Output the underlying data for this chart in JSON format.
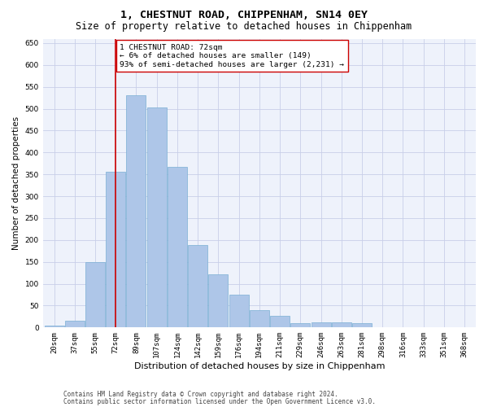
{
  "title": "1, CHESTNUT ROAD, CHIPPENHAM, SN14 0EY",
  "subtitle": "Size of property relative to detached houses in Chippenham",
  "xlabel": "Distribution of detached houses by size in Chippenham",
  "ylabel": "Number of detached properties",
  "categories": [
    "20sqm",
    "37sqm",
    "55sqm",
    "72sqm",
    "89sqm",
    "107sqm",
    "124sqm",
    "142sqm",
    "159sqm",
    "176sqm",
    "194sqm",
    "211sqm",
    "229sqm",
    "246sqm",
    "263sqm",
    "281sqm",
    "298sqm",
    "316sqm",
    "333sqm",
    "351sqm",
    "368sqm"
  ],
  "values": [
    5,
    15,
    150,
    355,
    530,
    502,
    367,
    188,
    122,
    75,
    40,
    27,
    10,
    12,
    11,
    10,
    0,
    0,
    0,
    0,
    0
  ],
  "bar_color": "#aec6e8",
  "bar_edge_color": "#7aafd4",
  "vline_x_index": 3,
  "vline_color": "#cc0000",
  "annotation_text": "1 CHESTNUT ROAD: 72sqm\n← 6% of detached houses are smaller (149)\n93% of semi-detached houses are larger (2,231) →",
  "annotation_box_color": "#ffffff",
  "annotation_box_edge_color": "#cc0000",
  "ylim": [
    0,
    660
  ],
  "yticks": [
    0,
    50,
    100,
    150,
    200,
    250,
    300,
    350,
    400,
    450,
    500,
    550,
    600,
    650
  ],
  "plot_bg_color": "#eef2fb",
  "grid_color": "#c8cfe8",
  "footer_line1": "Contains HM Land Registry data © Crown copyright and database right 2024.",
  "footer_line2": "Contains public sector information licensed under the Open Government Licence v3.0.",
  "title_fontsize": 9.5,
  "subtitle_fontsize": 8.5,
  "xlabel_fontsize": 8,
  "ylabel_fontsize": 7.5,
  "tick_fontsize": 6.5,
  "annot_fontsize": 6.8,
  "footer_fontsize": 5.5
}
